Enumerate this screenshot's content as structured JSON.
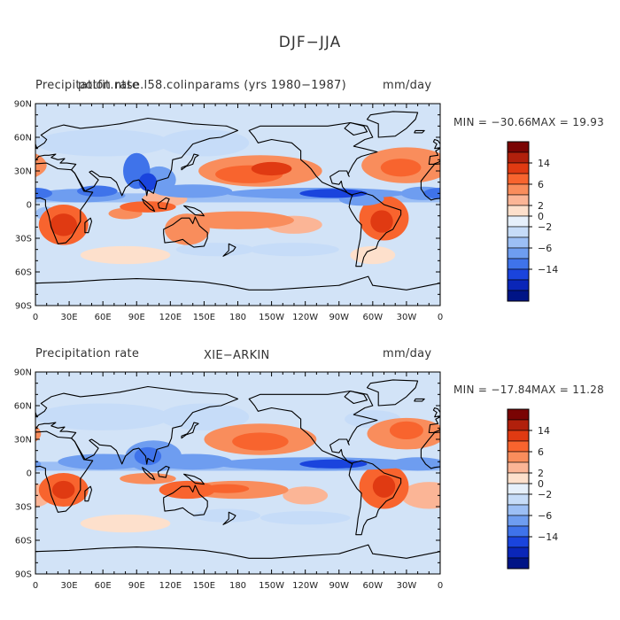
{
  "title": "DJF−JJA",
  "panels": [
    {
      "left_title": "Precipitation rate",
      "center_title": "potfit.ntse.l58.colinparams (yrs 1980−1987)",
      "units": "mm/day",
      "min_label": "MIN = −30.66",
      "max_label": "MAX =  19.93"
    },
    {
      "left_title": "Precipitation rate",
      "center_title": "XIE−ARKIN",
      "units": "mm/day",
      "min_label": "MIN = −17.84",
      "max_label": "MAX =  11.28"
    }
  ],
  "axes": {
    "lat_labels": [
      "90N",
      "60N",
      "30N",
      "0",
      "30S",
      "60S",
      "90S"
    ],
    "lon_labels": [
      "0",
      "30E",
      "60E",
      "90E",
      "120E",
      "150E",
      "180",
      "150W",
      "120W",
      "90W",
      "60W",
      "30W",
      "0"
    ]
  },
  "colorbar": {
    "tick_labels": [
      "14",
      "6",
      "2",
      "0",
      "−2",
      "−6",
      "−14"
    ],
    "colors": [
      "#7a0403",
      "#b1200c",
      "#e03a12",
      "#f8642e",
      "#f98d5c",
      "#fbb596",
      "#fde0cc",
      "#e6f0fb",
      "#c6dcf8",
      "#9cbff5",
      "#6e9df0",
      "#3f73ea",
      "#1a44dd",
      "#0a26b8",
      "#001486"
    ]
  },
  "palette": {
    "ocean_base": "#d2e3f7",
    "coast": "#000000"
  }
}
